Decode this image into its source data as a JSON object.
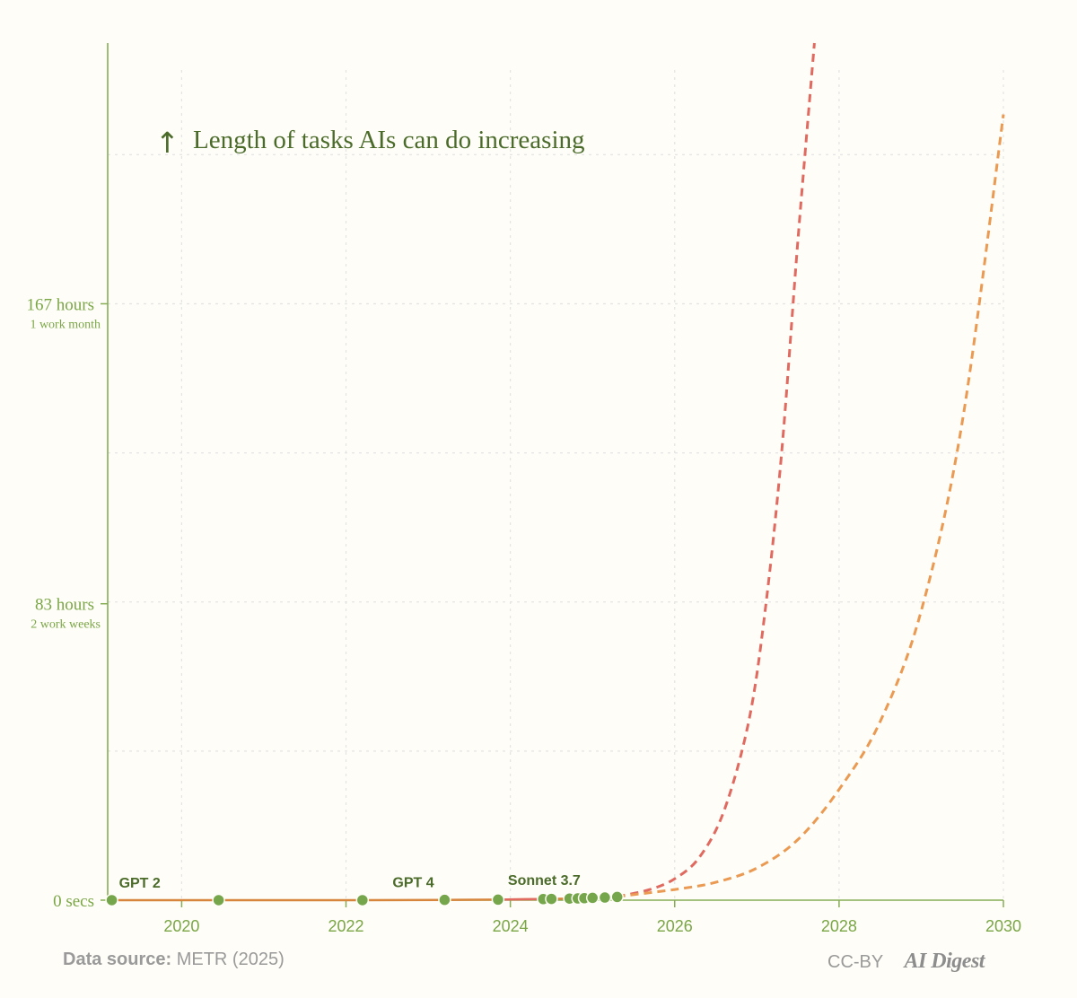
{
  "chart_data": {
    "type": "line",
    "title": "Length of tasks AIs can do increasing",
    "title_arrow": "↑",
    "xlabel": "",
    "ylabel": "",
    "xlim": [
      2019.1,
      2030.0
    ],
    "ylim": [
      0,
      240
    ],
    "y_unit": "hours",
    "x_ticks": [
      2020,
      2022,
      2024,
      2026,
      2028,
      2030
    ],
    "y_ticks": [
      {
        "value": 0,
        "label": "0 secs",
        "sublabel": ""
      },
      {
        "value": 83,
        "label": "83 hours",
        "sublabel": "2 work weeks"
      },
      {
        "value": 167,
        "label": "167 hours",
        "sublabel": "1 work month"
      }
    ],
    "grid": true,
    "colors": {
      "axis": "#86ad55",
      "tick_text": "#7aa646",
      "title": "#4b6b2a",
      "points": "#76a64b",
      "historical_line": "#d7853c",
      "fast_trend": "#e06a60",
      "slow_trend": "#ea9a52",
      "grid": "#e4e4e4"
    },
    "model_points": [
      {
        "x": 2019.15,
        "y": 0.001,
        "label": "GPT 2"
      },
      {
        "x": 2020.45,
        "y": 0.002,
        "label": ""
      },
      {
        "x": 2022.2,
        "y": 0.005,
        "label": ""
      },
      {
        "x": 2023.2,
        "y": 0.08,
        "label": "GPT 4"
      },
      {
        "x": 2023.85,
        "y": 0.15,
        "label": ""
      },
      {
        "x": 2024.4,
        "y": 0.3,
        "label": ""
      },
      {
        "x": 2024.5,
        "y": 0.35,
        "label": ""
      },
      {
        "x": 2024.72,
        "y": 0.45,
        "label": ""
      },
      {
        "x": 2024.82,
        "y": 0.5,
        "label": ""
      },
      {
        "x": 2024.9,
        "y": 0.55,
        "label": ""
      },
      {
        "x": 2025.0,
        "y": 0.65,
        "label": ""
      },
      {
        "x": 2025.15,
        "y": 0.75,
        "label": "Sonnet 3.7"
      },
      {
        "x": 2025.3,
        "y": 0.9,
        "label": ""
      }
    ],
    "series": [
      {
        "style": "dashed",
        "color": "#e06a60",
        "x": [
          2025.3,
          2025.7,
          2026.0,
          2026.3,
          2026.6,
          2026.9,
          2027.1,
          2027.3,
          2027.5,
          2027.7
        ],
        "y": [
          1,
          3,
          6,
          12,
          25,
          50,
          81,
          125,
          185,
          250
        ]
      },
      {
        "style": "dashed",
        "color": "#ea9a52",
        "x": [
          2025.3,
          2026.0,
          2026.5,
          2027.0,
          2027.5,
          2028.0,
          2028.5,
          2029.0,
          2029.5,
          2030.0
        ],
        "y": [
          1,
          3,
          5,
          9,
          17,
          31,
          50,
          81,
          134,
          220
        ]
      }
    ]
  },
  "footer": {
    "source_label": "Data source:",
    "source_value": "METR (2025)",
    "license": "CC-BY",
    "brand": "AI Digest"
  }
}
